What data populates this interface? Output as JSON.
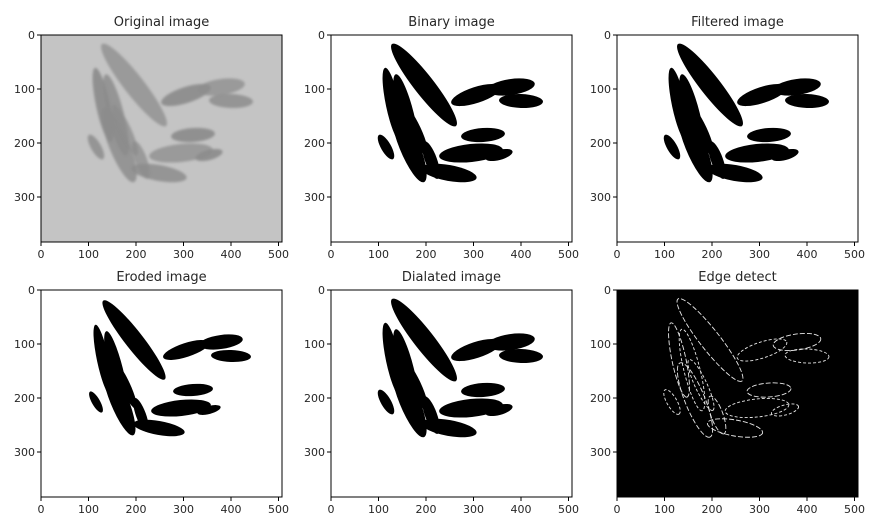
{
  "panels": [
    {
      "title": "Original image",
      "kind": "original"
    },
    {
      "title": "Binary image",
      "kind": "binary"
    },
    {
      "title": "Filtered image",
      "kind": "binary"
    },
    {
      "title": "Eroded image",
      "kind": "eroded"
    },
    {
      "title": "Dialated image",
      "kind": "binary"
    },
    {
      "title": "Edge detect",
      "kind": "edge"
    }
  ],
  "axes": {
    "x_ticks": [
      "0",
      "100",
      "200",
      "300",
      "400",
      "500"
    ],
    "y_ticks": [
      "0",
      "100",
      "200",
      "300"
    ]
  },
  "colors": {
    "original_background": "#c4c4c4",
    "original_grain": "#8c8c8c",
    "binary_background": "#ffffff",
    "binary_grain": "#000000",
    "edge_background": "#000000",
    "edge_line": "#e8e8e8"
  }
}
